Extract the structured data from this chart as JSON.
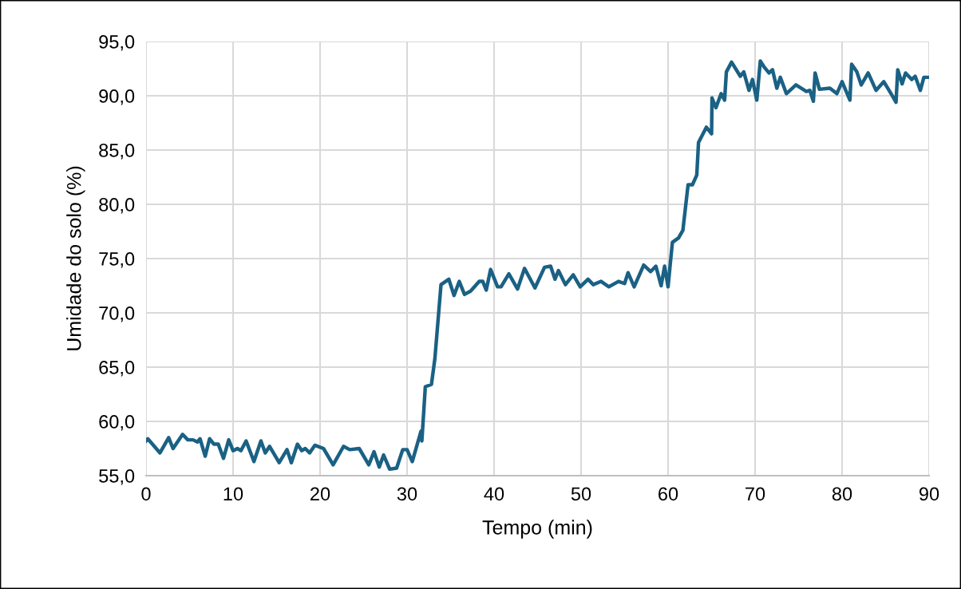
{
  "chart_data": {
    "type": "line",
    "xlabel": "Tempo (min)",
    "ylabel": "Umidade do solo (%)",
    "xlim": [
      0,
      90
    ],
    "xticks": [
      0,
      10,
      20,
      30,
      40,
      50,
      60,
      70,
      80,
      90
    ],
    "ylim": [
      55,
      95
    ],
    "yticks": [
      {
        "value": 55,
        "label": "55,0"
      },
      {
        "value": 60,
        "label": "60,0"
      },
      {
        "value": 65,
        "label": "65,0"
      },
      {
        "value": 70,
        "label": "70,0"
      },
      {
        "value": 75,
        "label": "75,0"
      },
      {
        "value": 80,
        "label": "80,0"
      },
      {
        "value": 85,
        "label": "85,0"
      },
      {
        "value": 90,
        "label": "90,0"
      },
      {
        "value": 95,
        "label": "95,0"
      }
    ],
    "grid": true,
    "marker": "none",
    "line_style": "solid",
    "series": [
      {
        "color": "#1a6184",
        "x": [
          0,
          0.2,
          1.6,
          2.6,
          3.1,
          4.2,
          4.8,
          5.4,
          5.9,
          6.2,
          6.8,
          7.3,
          7.8,
          8.3,
          8.9,
          9.5,
          10.0,
          10.5,
          10.9,
          11.5,
          12.4,
          13.2,
          13.7,
          14.2,
          15.3,
          16.2,
          16.7,
          17.4,
          17.9,
          18.3,
          18.8,
          19.4,
          20.4,
          21.5,
          22.7,
          23.4,
          24.5,
          25.6,
          26.2,
          26.8,
          27.3,
          28.0,
          28.8,
          29.5,
          30.0,
          30.6,
          31.6,
          31.7,
          32.1,
          32.8,
          33.2,
          33.9,
          34.8,
          35.4,
          36.0,
          36.6,
          37.3,
          38.3,
          38.7,
          39.1,
          39.6,
          40.4,
          40.8,
          41.7,
          42.7,
          43.5,
          44.7,
          45.8,
          46.5,
          47.0,
          47.4,
          48.2,
          49.1,
          49.9,
          50.8,
          51.4,
          52.3,
          53.2,
          54.3,
          55.0,
          55.4,
          56.1,
          57.2,
          58.0,
          58.6,
          59.2,
          59.6,
          60.0,
          60.3,
          60.5,
          61.2,
          61.7,
          62.3,
          62.8,
          63.3,
          63.5,
          64.4,
          65.0,
          65.05,
          65.5,
          66.1,
          66.5,
          66.7,
          67.3,
          68.3,
          68.7,
          69.3,
          69.7,
          70.2,
          70.6,
          71.0,
          71.6,
          72.0,
          72.5,
          72.9,
          73.6,
          74.7,
          75.9,
          76.3,
          76.7,
          76.9,
          77.4,
          78.6,
          79.4,
          80.0,
          80.9,
          81.1,
          81.7,
          82.2,
          83.0,
          83.9,
          84.8,
          85.7,
          86.2,
          86.4,
          86.9,
          87.3,
          88.0,
          88.4,
          89.0,
          89.4,
          90.0
        ],
        "values": [
          58.2,
          58.4,
          57.1,
          58.5,
          57.5,
          58.8,
          58.3,
          58.3,
          58.1,
          58.4,
          56.8,
          58.4,
          57.9,
          57.9,
          56.6,
          58.3,
          57.3,
          57.5,
          57.3,
          58.2,
          56.3,
          58.2,
          57.1,
          57.7,
          56.2,
          57.4,
          56.2,
          57.9,
          57.3,
          57.5,
          57.1,
          57.8,
          57.5,
          56.0,
          57.7,
          57.4,
          57.5,
          56.0,
          57.2,
          55.8,
          56.9,
          55.6,
          55.7,
          57.4,
          57.4,
          56.3,
          59.1,
          58.2,
          63.2,
          63.4,
          65.8,
          72.6,
          73.1,
          71.6,
          72.9,
          71.7,
          72.0,
          72.9,
          72.9,
          72.1,
          74.0,
          72.4,
          72.4,
          73.6,
          72.2,
          74.1,
          72.3,
          74.2,
          74.3,
          73.1,
          73.9,
          72.6,
          73.5,
          72.4,
          73.1,
          72.6,
          72.9,
          72.4,
          72.9,
          72.7,
          73.7,
          72.4,
          74.4,
          73.8,
          74.3,
          72.5,
          74.3,
          72.4,
          74.9,
          76.5,
          76.9,
          77.6,
          81.8,
          81.8,
          82.7,
          85.7,
          87.1,
          86.5,
          89.8,
          88.9,
          90.2,
          89.6,
          92.2,
          93.1,
          91.8,
          92.2,
          90.5,
          91.5,
          89.6,
          93.2,
          92.7,
          92.1,
          92.4,
          90.7,
          91.7,
          90.2,
          91.0,
          90.4,
          90.5,
          89.5,
          92.1,
          90.6,
          90.7,
          90.2,
          91.3,
          89.6,
          92.9,
          92.2,
          91.0,
          92.1,
          90.5,
          91.3,
          90.1,
          89.4,
          92.4,
          91.1,
          92.1,
          91.5,
          91.8,
          90.5,
          91.7,
          91.7
        ]
      }
    ]
  }
}
